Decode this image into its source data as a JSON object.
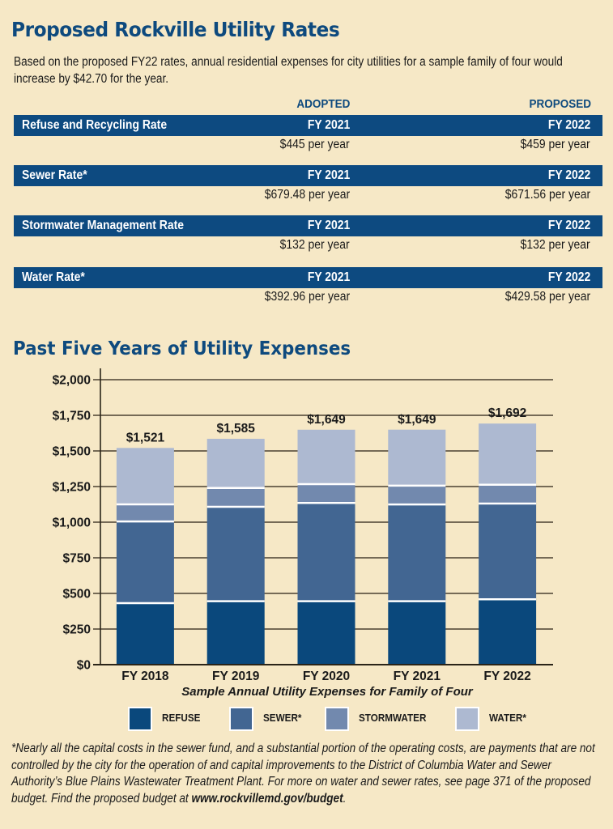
{
  "title": "Proposed Rockville Utility Rates",
  "intro": "Based on the proposed FY22 rates, annual residential expenses for city utilities for a sample family of four would increase by $42.70 for the year.",
  "rates_table": {
    "adopted_label": "ADOPTED",
    "proposed_label": "PROPOSED",
    "rows": [
      {
        "name": "Refuse and Recycling Rate",
        "adopted_year": "FY 2021",
        "proposed_year": "FY 2022",
        "adopted_value": "$445 per year",
        "proposed_value": "$459 per year"
      },
      {
        "name": "Sewer Rate*",
        "adopted_year": "FY 2021",
        "proposed_year": "FY 2022",
        "adopted_value": "$679.48 per year",
        "proposed_value": "$671.56 per year"
      },
      {
        "name": "Stormwater Management Rate",
        "adopted_year": "FY 2021",
        "proposed_year": "FY 2022",
        "adopted_value": "$132 per year",
        "proposed_value": "$132 per year"
      },
      {
        "name": "Water Rate*",
        "adopted_year": "FY 2021",
        "proposed_year": "FY 2022",
        "adopted_value": "$392.96 per year",
        "proposed_value": "$429.58 per year"
      }
    ]
  },
  "chart_title": "Past Five Years of Utility Expenses",
  "colors": {
    "brand": "#0e4a7e",
    "band": "#0d4a80",
    "background": "#f6e8c6",
    "refuse": "#0a487c",
    "sewer": "#426692",
    "stormwater": "#7289ae",
    "water": "#adb9d1"
  },
  "chart_data": {
    "type": "bar",
    "stacked": true,
    "title": "Past Five Years of Utility Expenses",
    "xlabel": "Sample Annual Utility Expenses for Family of Four",
    "ylabel": "",
    "categories": [
      "FY 2018",
      "FY 2019",
      "FY 2020",
      "FY 2021",
      "FY 2022"
    ],
    "series": [
      {
        "name": "REFUSE",
        "values": [
          432,
          445,
          445,
          445,
          459
        ]
      },
      {
        "name": "SEWER*",
        "values": [
          573,
          663,
          690,
          679.48,
          671.56
        ]
      },
      {
        "name": "STORMWATER",
        "values": [
          120,
          132,
          132,
          132,
          132
        ]
      },
      {
        "name": "WATER*",
        "values": [
          396,
          345,
          382,
          392.96,
          429.58
        ]
      }
    ],
    "totals": [
      1521,
      1585,
      1649,
      1649,
      1692
    ],
    "total_labels": [
      "$1,521",
      "$1,585",
      "$1,649",
      "$1,649",
      "$1,692"
    ],
    "yticks": [
      0,
      250,
      500,
      750,
      1000,
      1250,
      1500,
      1750,
      2000
    ],
    "ytick_labels": [
      "$0",
      "$250",
      "$500",
      "$750",
      "$1,000",
      "$1,250",
      "$1,500",
      "$1,750",
      "$2,000"
    ],
    "ylim": [
      0,
      2000
    ],
    "grid": true,
    "legend_position": "bottom"
  },
  "legend": [
    "REFUSE",
    "SEWER*",
    "STORMWATER",
    "WATER*"
  ],
  "footnote": {
    "text": "*Nearly all the capital costs in the sewer fund, and a substantial portion of the operating costs, are payments that are not controlled by the city for the operation of and capital improvements to the District of Columbia Water and Sewer Authority’s Blue Plains Wastewater Treatment Plant. For more on water and sewer rates, see page 371 of the proposed budget. Find the proposed budget at ",
    "link": "www.rockvillemd.gov/budget",
    "end": "."
  }
}
